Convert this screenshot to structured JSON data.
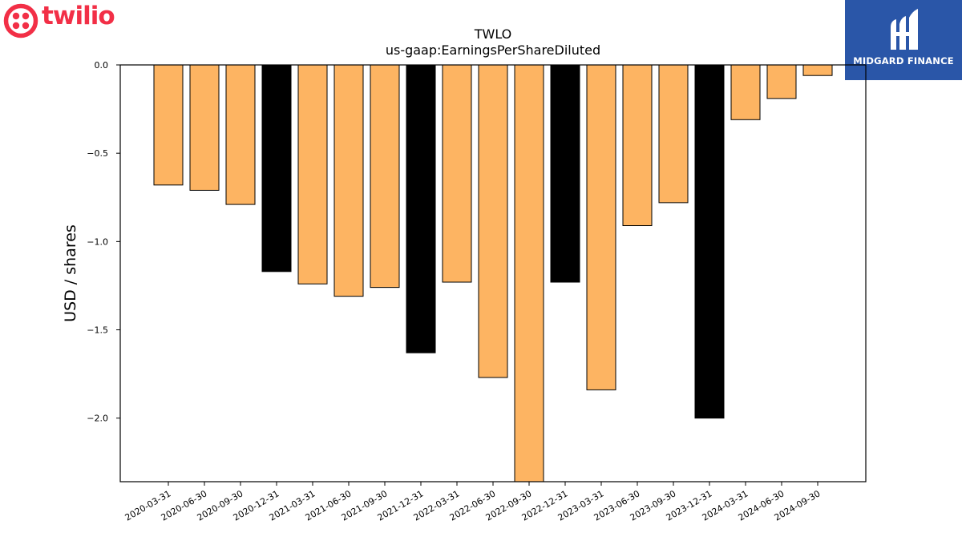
{
  "brand": {
    "logo_text": "twilio",
    "logo_color": "#f22f46",
    "partner_name": "MIDGARD FINANCE",
    "partner_bg": "#2a56a8"
  },
  "colors": {
    "bar_default": "#fdb462",
    "bar_highlight": "#000000",
    "bar_edge": "#000000"
  },
  "chart_data": {
    "type": "bar",
    "title": "TWLO",
    "subtitle": "us-gaap:EarningsPerShareDiluted",
    "ylabel": "USD / shares",
    "xlabel": "",
    "ylim": [
      -2.36,
      0.0
    ],
    "yticks": [
      0.0,
      -0.5,
      -1.0,
      -1.5,
      -2.0
    ],
    "ytick_labels": [
      "0.0",
      "−0.5",
      "−1.0",
      "−1.5",
      "−2.0"
    ],
    "grid": false,
    "categories": [
      "2020-03-31",
      "2020-06-30",
      "2020-09-30",
      "2020-12-31",
      "2021-03-31",
      "2021-06-30",
      "2021-09-30",
      "2021-12-31",
      "2022-03-31",
      "2022-06-30",
      "2022-09-30",
      "2022-12-31",
      "2023-03-31",
      "2023-06-30",
      "2023-09-30",
      "2023-12-31",
      "2024-03-31",
      "2024-06-30",
      "2024-09-30"
    ],
    "values": [
      -0.68,
      -0.71,
      -0.79,
      -1.17,
      -1.24,
      -1.31,
      -1.26,
      -1.63,
      -1.23,
      -1.77,
      -2.36,
      -1.23,
      -1.84,
      -0.91,
      -0.78,
      -2.0,
      -0.31,
      -0.19,
      -0.06
    ],
    "highlight": [
      false,
      false,
      false,
      true,
      false,
      false,
      false,
      true,
      false,
      false,
      false,
      true,
      false,
      false,
      false,
      true,
      false,
      false,
      false
    ]
  }
}
